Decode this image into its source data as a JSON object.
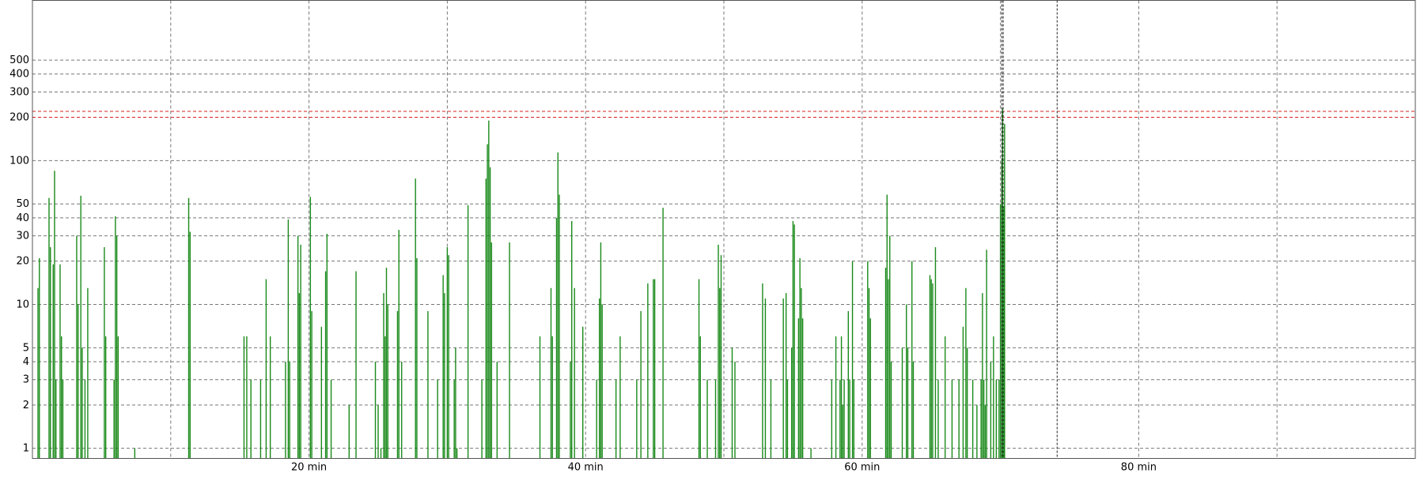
{
  "chart_data": {
    "type": "bar",
    "title": "",
    "xlabel": "",
    "ylabel": "",
    "y_scale": "log",
    "grid": true,
    "xlim_min": [
      0,
      100
    ],
    "ylim": [
      0.85,
      1300
    ],
    "x_ticks": [
      {
        "value": 20,
        "label": "20 min"
      },
      {
        "value": 40,
        "label": "40 min"
      },
      {
        "value": 60,
        "label": "60 min"
      },
      {
        "value": 80,
        "label": "80 min"
      }
    ],
    "x_minor_grid": [
      10,
      30,
      50,
      70,
      90
    ],
    "y_ticks": [
      {
        "value": 1,
        "label": "1"
      },
      {
        "value": 2,
        "label": "2"
      },
      {
        "value": 3,
        "label": "3"
      },
      {
        "value": 4,
        "label": "4"
      },
      {
        "value": 5,
        "label": "5"
      },
      {
        "value": 10,
        "label": "10"
      },
      {
        "value": 20,
        "label": "20"
      },
      {
        "value": 30,
        "label": "30"
      },
      {
        "value": 40,
        "label": "40"
      },
      {
        "value": 50,
        "label": "50"
      },
      {
        "value": 100,
        "label": "100"
      },
      {
        "value": 200,
        "label": "200"
      },
      {
        "value": 300,
        "label": "300"
      },
      {
        "value": 400,
        "label": "400"
      },
      {
        "value": 500,
        "label": "500"
      }
    ],
    "thresholds": [
      {
        "value": 200,
        "color": "#d62020"
      },
      {
        "value": 220,
        "color": "#d62020"
      }
    ],
    "vertical_markers": [
      70.1,
      70.2,
      74.1
    ],
    "series": [
      {
        "color": "#1a8a1a",
        "points": [
          [
            0.4,
            13
          ],
          [
            0.5,
            21
          ],
          [
            1.2,
            55
          ],
          [
            1.3,
            25
          ],
          [
            1.5,
            19
          ],
          [
            1.6,
            85
          ],
          [
            1.7,
            3
          ],
          [
            2.0,
            19
          ],
          [
            2.1,
            6
          ],
          [
            2.2,
            3
          ],
          [
            3.2,
            30
          ],
          [
            3.3,
            10
          ],
          [
            3.5,
            57
          ],
          [
            3.6,
            5
          ],
          [
            3.8,
            3
          ],
          [
            4.0,
            13
          ],
          [
            5.2,
            25
          ],
          [
            5.3,
            6
          ],
          [
            5.9,
            3
          ],
          [
            6.0,
            41
          ],
          [
            6.1,
            30
          ],
          [
            6.2,
            6
          ],
          [
            7.4,
            1
          ],
          [
            11.3,
            55
          ],
          [
            11.4,
            32
          ],
          [
            15.3,
            6
          ],
          [
            15.5,
            6
          ],
          [
            15.8,
            3
          ],
          [
            16.5,
            3
          ],
          [
            16.9,
            15
          ],
          [
            17.2,
            6
          ],
          [
            18.3,
            4
          ],
          [
            18.5,
            39
          ],
          [
            18.6,
            4
          ],
          [
            19.2,
            30
          ],
          [
            19.3,
            12
          ],
          [
            19.4,
            26
          ],
          [
            20.1,
            56
          ],
          [
            20.2,
            9
          ],
          [
            20.9,
            7
          ],
          [
            21.2,
            17
          ],
          [
            21.3,
            31
          ],
          [
            21.6,
            3
          ],
          [
            22.9,
            2
          ],
          [
            23.4,
            17
          ],
          [
            24.8,
            4
          ],
          [
            25.0,
            2
          ],
          [
            25.2,
            1
          ],
          [
            25.4,
            12
          ],
          [
            25.5,
            6
          ],
          [
            25.6,
            18
          ],
          [
            25.7,
            10
          ],
          [
            26.4,
            9
          ],
          [
            26.5,
            33
          ],
          [
            26.7,
            4
          ],
          [
            27.7,
            75
          ],
          [
            27.8,
            21
          ],
          [
            28.6,
            9
          ],
          [
            29.3,
            3
          ],
          [
            29.7,
            16
          ],
          [
            29.8,
            12
          ],
          [
            30.0,
            25
          ],
          [
            30.1,
            22
          ],
          [
            30.5,
            3
          ],
          [
            30.6,
            5
          ],
          [
            30.7,
            1
          ],
          [
            31.5,
            49
          ],
          [
            32.5,
            3
          ],
          [
            32.8,
            75
          ],
          [
            32.9,
            130
          ],
          [
            33.0,
            190
          ],
          [
            33.1,
            90
          ],
          [
            33.2,
            27
          ],
          [
            33.6,
            4
          ],
          [
            34.5,
            27
          ],
          [
            36.7,
            6
          ],
          [
            37.5,
            13
          ],
          [
            37.6,
            6
          ],
          [
            37.9,
            40
          ],
          [
            38.0,
            114
          ],
          [
            38.1,
            58
          ],
          [
            38.9,
            4
          ],
          [
            39.0,
            38
          ],
          [
            39.2,
            13
          ],
          [
            39.8,
            7
          ],
          [
            40.8,
            3
          ],
          [
            41.0,
            11
          ],
          [
            41.1,
            27
          ],
          [
            41.2,
            10
          ],
          [
            42.2,
            3
          ],
          [
            42.5,
            6
          ],
          [
            43.7,
            3
          ],
          [
            44.0,
            9
          ],
          [
            44.5,
            14
          ],
          [
            44.9,
            15
          ],
          [
            45.0,
            15
          ],
          [
            45.6,
            47
          ],
          [
            48.2,
            15
          ],
          [
            48.3,
            6
          ],
          [
            48.8,
            3
          ],
          [
            49.4,
            3
          ],
          [
            49.6,
            26
          ],
          [
            49.7,
            13
          ],
          [
            49.8,
            22
          ],
          [
            50.6,
            5
          ],
          [
            50.8,
            4
          ],
          [
            52.8,
            14
          ],
          [
            53.0,
            11
          ],
          [
            53.4,
            3
          ],
          [
            54.3,
            11
          ],
          [
            54.5,
            12
          ],
          [
            54.6,
            3
          ],
          [
            54.9,
            5
          ],
          [
            55.0,
            38
          ],
          [
            55.1,
            36
          ],
          [
            55.4,
            8
          ],
          [
            55.5,
            21
          ],
          [
            55.6,
            13
          ],
          [
            55.7,
            8
          ],
          [
            56.3,
            1
          ],
          [
            57.8,
            3
          ],
          [
            58.1,
            6
          ],
          [
            58.4,
            3
          ],
          [
            58.5,
            6
          ],
          [
            58.6,
            2
          ],
          [
            58.7,
            3
          ],
          [
            59.0,
            9
          ],
          [
            59.1,
            3
          ],
          [
            59.3,
            20
          ],
          [
            59.4,
            3
          ],
          [
            60.4,
            20
          ],
          [
            60.5,
            13
          ],
          [
            60.6,
            8
          ],
          [
            61.7,
            18
          ],
          [
            61.8,
            58
          ],
          [
            61.9,
            15
          ],
          [
            62.0,
            30
          ],
          [
            62.1,
            4
          ],
          [
            62.9,
            5
          ],
          [
            63.2,
            10
          ],
          [
            63.3,
            5
          ],
          [
            63.6,
            20
          ],
          [
            63.7,
            4
          ],
          [
            64.9,
            16
          ],
          [
            65.0,
            15
          ],
          [
            65.1,
            14
          ],
          [
            65.3,
            25
          ],
          [
            65.5,
            3
          ],
          [
            66.0,
            6
          ],
          [
            66.5,
            3
          ],
          [
            67.0,
            3
          ],
          [
            67.3,
            7
          ],
          [
            67.5,
            13
          ],
          [
            67.6,
            5
          ],
          [
            68.0,
            3
          ],
          [
            68.3,
            2
          ],
          [
            68.6,
            3
          ],
          [
            68.7,
            12
          ],
          [
            68.8,
            3
          ],
          [
            68.9,
            2
          ],
          [
            69.0,
            24
          ],
          [
            69.3,
            4
          ],
          [
            69.5,
            6
          ],
          [
            69.7,
            3
          ],
          [
            69.9,
            3
          ],
          [
            70.0,
            50
          ],
          [
            70.1,
            100
          ],
          [
            70.15,
            230
          ],
          [
            70.25,
            48
          ],
          [
            70.3,
            180
          ]
        ]
      }
    ]
  }
}
